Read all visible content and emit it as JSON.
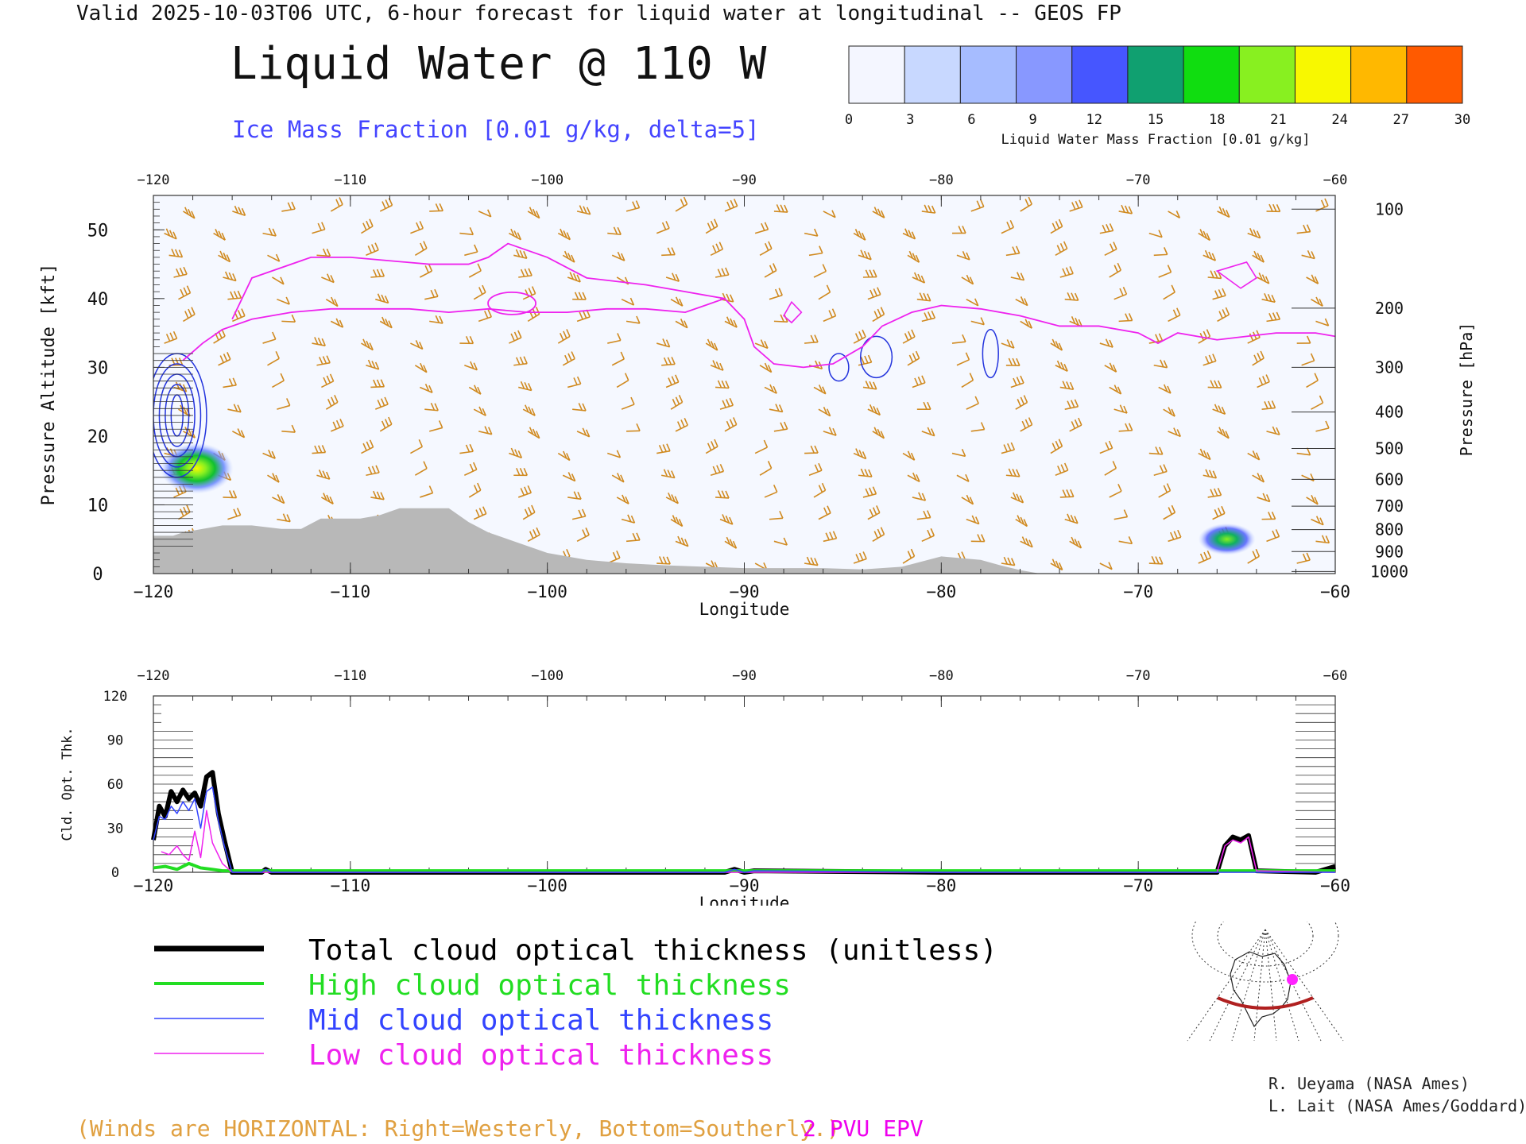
{
  "header": {
    "title": "Valid 2025-10-03T06 UTC, 6-hour forecast for liquid water at longitudinal -- GEOS FP",
    "main_title": "Liquid Water @ 110 W",
    "subtitle": "Ice Mass Fraction [0.01 g/kg, delta=5]"
  },
  "colorbar": {
    "label": "Liquid Water Mass Fraction [0.01 g/kg]",
    "ticks": [
      "0",
      "3",
      "6",
      "9",
      "12",
      "15",
      "18",
      "21",
      "24",
      "27",
      "30"
    ],
    "colors": [
      "#f4f6ff",
      "#c8d8ff",
      "#a6bcff",
      "#8898ff",
      "#4656ff",
      "#10a070",
      "#10dd10",
      "#88f020",
      "#f8f800",
      "#ffb800",
      "#ff5a00"
    ]
  },
  "legend": {
    "items": [
      {
        "label": "Total cloud optical thickness (unitless)",
        "color": "#000000"
      },
      {
        "label": "High cloud optical thickness",
        "color": "#22dd22"
      },
      {
        "label": "Mid cloud optical thickness",
        "color": "#3344ff"
      },
      {
        "label": "Low cloud optical thickness",
        "color": "#ee22ee"
      }
    ]
  },
  "notes": {
    "winds": "(Winds are HORIZONTAL: Right=Westerly, Bottom=Southerly.)",
    "epv": "2 PVU EPV"
  },
  "credits": [
    "R. Ueyama (NASA Ames)",
    "L. Lait (NASA Ames/Goddard)"
  ],
  "colors": {
    "wind": "#d08a20",
    "ice": "#2233dd",
    "epv": "#ee22ee",
    "terrain": "#b8b8b8"
  },
  "chart_data": [
    {
      "type": "heatmap",
      "name": "upper-cross-section",
      "xlabel": "Longitude",
      "ylabel": "Pressure Altitude [kft]",
      "y2label": "Pressure [hPa]",
      "xlim": [
        -120,
        -60
      ],
      "ylim": [
        0,
        55
      ],
      "x_ticks": [
        "-120",
        "-110",
        "-100",
        "-90",
        "-80",
        "-70",
        "-60"
      ],
      "y_ticks": [
        "0",
        "10",
        "20",
        "30",
        "40",
        "50"
      ],
      "pressure_ticks": [
        {
          "label": "100",
          "alt": 53
        },
        {
          "label": "200",
          "alt": 38.6
        },
        {
          "label": "300",
          "alt": 30
        },
        {
          "label": "400",
          "alt": 23.5
        },
        {
          "label": "500",
          "alt": 18.2
        },
        {
          "label": "600",
          "alt": 13.7
        },
        {
          "label": "700",
          "alt": 9.8
        },
        {
          "label": "800",
          "alt": 6.4
        },
        {
          "label": "900",
          "alt": 3.2
        },
        {
          "label": "1000",
          "alt": 0.3
        }
      ],
      "epv_2pvu": [
        [
          -118.5,
          31
        ],
        [
          -117.5,
          33.5
        ],
        [
          -116.5,
          35.5
        ],
        [
          -115,
          37
        ],
        [
          -113,
          38
        ],
        [
          -111,
          38.5
        ],
        [
          -109,
          38.5
        ],
        [
          -107,
          38.5
        ],
        [
          -105,
          38
        ],
        [
          -103,
          38.5
        ],
        [
          -101,
          38
        ],
        [
          -99,
          38
        ],
        [
          -97,
          38.5
        ],
        [
          -95,
          38.5
        ],
        [
          -93,
          38
        ],
        [
          -92,
          39
        ],
        [
          -91,
          40
        ],
        [
          -90,
          37
        ],
        [
          -89.5,
          33
        ],
        [
          -88.5,
          30.5
        ],
        [
          -87,
          30
        ],
        [
          -85.5,
          30.5
        ],
        [
          -84,
          33
        ],
        [
          -83,
          36
        ],
        [
          -81.5,
          38
        ],
        [
          -80,
          39
        ],
        [
          -78,
          38.5
        ],
        [
          -76,
          37.5
        ],
        [
          -74,
          36
        ],
        [
          -72,
          36
        ],
        [
          -70,
          35
        ],
        [
          -69,
          33.5
        ],
        [
          -68,
          35
        ],
        [
          -66,
          34
        ],
        [
          -64.5,
          34.5
        ],
        [
          -63,
          35
        ],
        [
          -61,
          35
        ],
        [
          -60,
          34.5
        ]
      ],
      "epv_upper": [
        [
          -116,
          37
        ],
        [
          -115,
          43
        ],
        [
          -112,
          46
        ],
        [
          -110,
          46
        ],
        [
          -106,
          45
        ],
        [
          -104,
          45
        ],
        [
          -103,
          46
        ],
        [
          -102,
          48
        ],
        [
          -100,
          46
        ],
        [
          -98,
          43
        ],
        [
          -95,
          42
        ],
        [
          -93,
          41
        ],
        [
          -91,
          40
        ]
      ],
      "ice_contours": [
        {
          "center": [
            -118.8,
            23
          ],
          "radii_deg": [
            1.5,
            1.2,
            0.9,
            0.6,
            0.3
          ],
          "radii_kft": [
            9,
            7.5,
            6,
            4.5,
            3
          ]
        },
        {
          "center": [
            -85.2,
            30
          ],
          "radii_deg": [
            0.5
          ],
          "radii_kft": [
            2
          ]
        },
        {
          "center": [
            -83.3,
            31.5
          ],
          "radii_deg": [
            0.8
          ],
          "radii_kft": [
            3
          ]
        },
        {
          "center": [
            -77.5,
            32
          ],
          "radii_deg": [
            0.4
          ],
          "radii_kft": [
            3.5
          ]
        }
      ],
      "liquid_water_blobs": [
        {
          "lon": -117.8,
          "alt": 15.3,
          "max": 20
        },
        {
          "lon": -65.5,
          "alt": 5,
          "max": 16
        }
      ],
      "terrain": [
        [
          -120,
          5.5
        ],
        [
          -119,
          5.5
        ],
        [
          -118.5,
          6
        ],
        [
          -117.5,
          6.5
        ],
        [
          -116.5,
          7
        ],
        [
          -115,
          7
        ],
        [
          -113.5,
          6.5
        ],
        [
          -112.5,
          6.5
        ],
        [
          -111.5,
          8
        ],
        [
          -109.5,
          8
        ],
        [
          -108.5,
          8.5
        ],
        [
          -107.5,
          9.5
        ],
        [
          -105,
          9.5
        ],
        [
          -104,
          7.5
        ],
        [
          -103,
          6
        ],
        [
          -102,
          5
        ],
        [
          -101,
          4
        ],
        [
          -100,
          3
        ],
        [
          -98,
          2
        ],
        [
          -96,
          1.5
        ],
        [
          -94,
          1.2
        ],
        [
          -92,
          1
        ],
        [
          -90,
          0.8
        ],
        [
          -86,
          0.8
        ],
        [
          -84,
          0.6
        ],
        [
          -82,
          1
        ],
        [
          -80,
          2.5
        ],
        [
          -78,
          2
        ],
        [
          -77,
          1.2
        ],
        [
          -76,
          0.5
        ],
        [
          -75,
          0
        ]
      ]
    },
    {
      "type": "line",
      "name": "optical-thickness",
      "xlabel": "Longitude",
      "ylabel": "Cld. Opt. Thk.",
      "xlim": [
        -120,
        -60
      ],
      "ylim": [
        0,
        120
      ],
      "x_ticks": [
        "-120",
        "-110",
        "-100",
        "-90",
        "-80",
        "-70",
        "-60"
      ],
      "y_ticks": [
        "0",
        "30",
        "60",
        "90",
        "120"
      ],
      "series": [
        {
          "name": "Total cloud optical thickness (unitless)",
          "x": [
            -120,
            -119.7,
            -119.4,
            -119.1,
            -118.8,
            -118.5,
            -118.2,
            -117.9,
            -117.6,
            -117.3,
            -117,
            -116.7,
            -116.4,
            -116,
            -114.5,
            -114.3,
            -114,
            -91,
            -90.5,
            -90,
            -89.5,
            -80,
            -66,
            -65.6,
            -65.2,
            -64.8,
            -64.4,
            -64,
            -61,
            -60
          ],
          "y": [
            22,
            45,
            38,
            55,
            48,
            56,
            50,
            54,
            45,
            65,
            68,
            40,
            22,
            0,
            0,
            2,
            0,
            0,
            2,
            0,
            1,
            0,
            0,
            18,
            24,
            22,
            25,
            1,
            0,
            4
          ]
        },
        {
          "name": "High cloud optical thickness",
          "x": [
            -120,
            -119.4,
            -118.8,
            -118.2,
            -117.6,
            -117,
            -116.5,
            -110,
            -100,
            -90,
            -80,
            -70,
            -60
          ],
          "y": [
            3,
            4,
            2,
            6,
            3,
            2,
            1,
            1,
            1,
            1,
            1,
            1,
            1
          ]
        },
        {
          "name": "Mid cloud optical thickness",
          "x": [
            -120,
            -119.7,
            -119.4,
            -119.1,
            -118.8,
            -118.5,
            -118.2,
            -117.9,
            -117.6,
            -117.3,
            -117,
            -116.7,
            -116.4,
            -116,
            -114.5,
            -114.3,
            -114,
            -91,
            -90.5,
            -90,
            -89.5,
            -80,
            -60
          ],
          "y": [
            22,
            38,
            36,
            45,
            40,
            48,
            42,
            50,
            30,
            55,
            58,
            35,
            18,
            0,
            0,
            2,
            0,
            0,
            2,
            0,
            1,
            0,
            0
          ]
        },
        {
          "name": "Low cloud optical thickness",
          "x": [
            -119.6,
            -119.2,
            -118.8,
            -118.5,
            -118.2,
            -117.9,
            -117.6,
            -117.3,
            -117,
            -116.5,
            -116,
            -66,
            -65.6,
            -65.2,
            -64.8,
            -64.4,
            -64,
            -60
          ],
          "y": [
            14,
            12,
            18,
            12,
            8,
            28,
            10,
            42,
            20,
            6,
            0,
            0,
            18,
            22,
            20,
            24,
            1,
            0
          ]
        }
      ]
    }
  ]
}
